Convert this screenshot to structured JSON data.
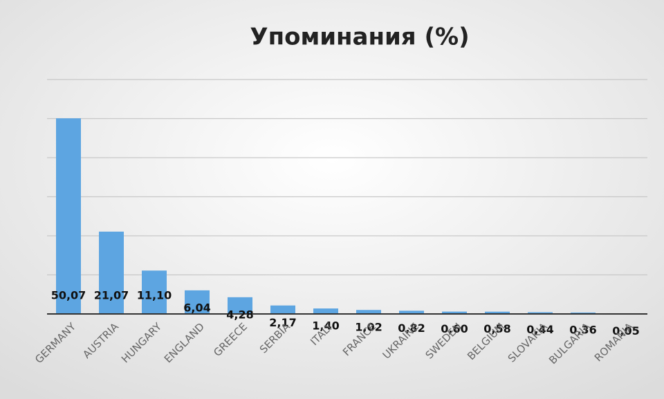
{
  "chart_data": {
    "type": "bar",
    "title": "Упоминания (%)",
    "categories": [
      "GERMANY",
      "AUSTRIA",
      "HUNGARY",
      "ENGLAND",
      "GREECE",
      "SERBIA",
      "ITALY",
      "FRANCE",
      "UKRAINE",
      "SWEDEN",
      "BELGIUM",
      "SLOVAKIA",
      "BULGARIA",
      "ROMANIA"
    ],
    "values": [
      50.07,
      21.07,
      11.1,
      6.04,
      4.28,
      2.17,
      1.4,
      1.02,
      0.82,
      0.6,
      0.58,
      0.44,
      0.36,
      0.05
    ],
    "value_labels": [
      "50,07",
      "21,07",
      "11,10",
      "6,04",
      "4,28",
      "2,17",
      "1,40",
      "1,02",
      "0,82",
      "0,60",
      "0,58",
      "0,44",
      "0,36",
      "0,05"
    ],
    "color": "#5da5e1",
    "ylim": [
      0,
      60
    ],
    "yticks": [
      0,
      10,
      20,
      30,
      40,
      50,
      60
    ],
    "grid": true
  }
}
